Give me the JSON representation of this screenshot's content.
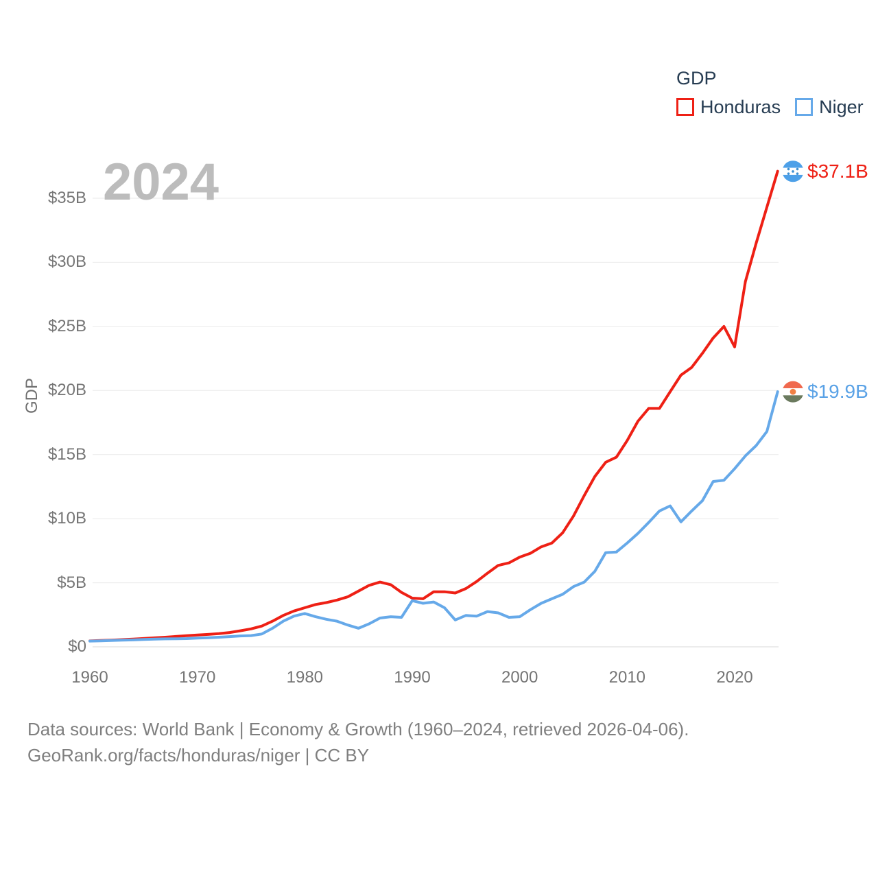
{
  "watermark": "2024",
  "legend": {
    "title": "GDP",
    "items": [
      {
        "label": "Honduras",
        "color": "#ee2015"
      },
      {
        "label": "Niger",
        "color": "#66a9e9"
      }
    ]
  },
  "y_axis": {
    "title": "GDP",
    "ticks": [
      {
        "value": 0,
        "label": "$0"
      },
      {
        "value": 5,
        "label": "$5B"
      },
      {
        "value": 10,
        "label": "$10B"
      },
      {
        "value": 15,
        "label": "$15B"
      },
      {
        "value": 20,
        "label": "$20B"
      },
      {
        "value": 25,
        "label": "$25B"
      },
      {
        "value": 30,
        "label": "$30B"
      },
      {
        "value": 35,
        "label": "$35B"
      }
    ]
  },
  "x_axis": {
    "ticks": [
      {
        "value": 1960,
        "label": "1960"
      },
      {
        "value": 1970,
        "label": "1970"
      },
      {
        "value": 1980,
        "label": "1980"
      },
      {
        "value": 1990,
        "label": "1990"
      },
      {
        "value": 2000,
        "label": "2000"
      },
      {
        "value": 2010,
        "label": "2010"
      },
      {
        "value": 2020,
        "label": "2020"
      }
    ]
  },
  "footer": {
    "line1": "Data sources: World Bank | Economy & Growth (1960–2024, retrieved 2026-04-06).",
    "line2": "GeoRank.org/facts/honduras/niger | CC BY"
  },
  "flag_colors": {
    "honduras": {
      "band": "#4da0e8",
      "star": "#3d8fd1"
    },
    "niger": {
      "top": "#f0694e",
      "dot": "#f08044",
      "bottom": "#6b7a5e"
    }
  },
  "chart_data": {
    "type": "line",
    "title": "GDP",
    "xlabel": "",
    "ylabel": "GDP",
    "ylim": [
      0,
      37.5
    ],
    "grid": "horizontal",
    "legend_position": "top-right",
    "x": [
      1960,
      1961,
      1962,
      1963,
      1964,
      1965,
      1966,
      1967,
      1968,
      1969,
      1970,
      1971,
      1972,
      1973,
      1974,
      1975,
      1976,
      1977,
      1978,
      1979,
      1980,
      1981,
      1982,
      1983,
      1984,
      1985,
      1986,
      1987,
      1988,
      1989,
      1990,
      1991,
      1992,
      1993,
      1994,
      1995,
      1996,
      1997,
      1998,
      1999,
      2000,
      2001,
      2002,
      2003,
      2004,
      2005,
      2006,
      2007,
      2008,
      2009,
      2010,
      2011,
      2012,
      2013,
      2014,
      2015,
      2016,
      2017,
      2018,
      2019,
      2020,
      2021,
      2022,
      2023,
      2024
    ],
    "series": [
      {
        "name": "Honduras",
        "color": "#ee2015",
        "end_label": "$37.1B",
        "flag": "honduras",
        "values": [
          0.46,
          0.49,
          0.52,
          0.56,
          0.6,
          0.65,
          0.7,
          0.75,
          0.81,
          0.87,
          0.92,
          0.97,
          1.03,
          1.12,
          1.25,
          1.4,
          1.62,
          2.0,
          2.45,
          2.8,
          3.05,
          3.3,
          3.45,
          3.65,
          3.9,
          4.35,
          4.8,
          5.05,
          4.85,
          4.25,
          3.8,
          3.75,
          4.3,
          4.3,
          4.2,
          4.55,
          5.1,
          5.75,
          6.35,
          6.55,
          7.0,
          7.3,
          7.8,
          8.1,
          8.9,
          10.2,
          11.8,
          13.3,
          14.4,
          14.8,
          16.1,
          17.6,
          18.6,
          18.6,
          19.9,
          21.2,
          21.8,
          22.9,
          24.1,
          25.0,
          23.4,
          28.5,
          31.5,
          34.3,
          37.1
        ]
      },
      {
        "name": "Niger",
        "color": "#66a9e9",
        "end_label": "$19.9B",
        "flag": "niger",
        "values": [
          0.45,
          0.47,
          0.49,
          0.52,
          0.54,
          0.57,
          0.6,
          0.62,
          0.63,
          0.64,
          0.68,
          0.71,
          0.75,
          0.8,
          0.85,
          0.88,
          1.0,
          1.45,
          2.0,
          2.4,
          2.6,
          2.35,
          2.15,
          2.0,
          1.7,
          1.45,
          1.8,
          2.25,
          2.35,
          2.3,
          3.6,
          3.4,
          3.5,
          3.05,
          2.1,
          2.45,
          2.4,
          2.75,
          2.65,
          2.3,
          2.35,
          2.9,
          3.4,
          3.75,
          4.1,
          4.7,
          5.05,
          5.9,
          7.35,
          7.4,
          8.1,
          8.85,
          9.7,
          10.6,
          11.0,
          9.75,
          10.6,
          11.4,
          12.9,
          13.0,
          13.9,
          14.9,
          15.7,
          16.8,
          19.9
        ]
      }
    ]
  }
}
